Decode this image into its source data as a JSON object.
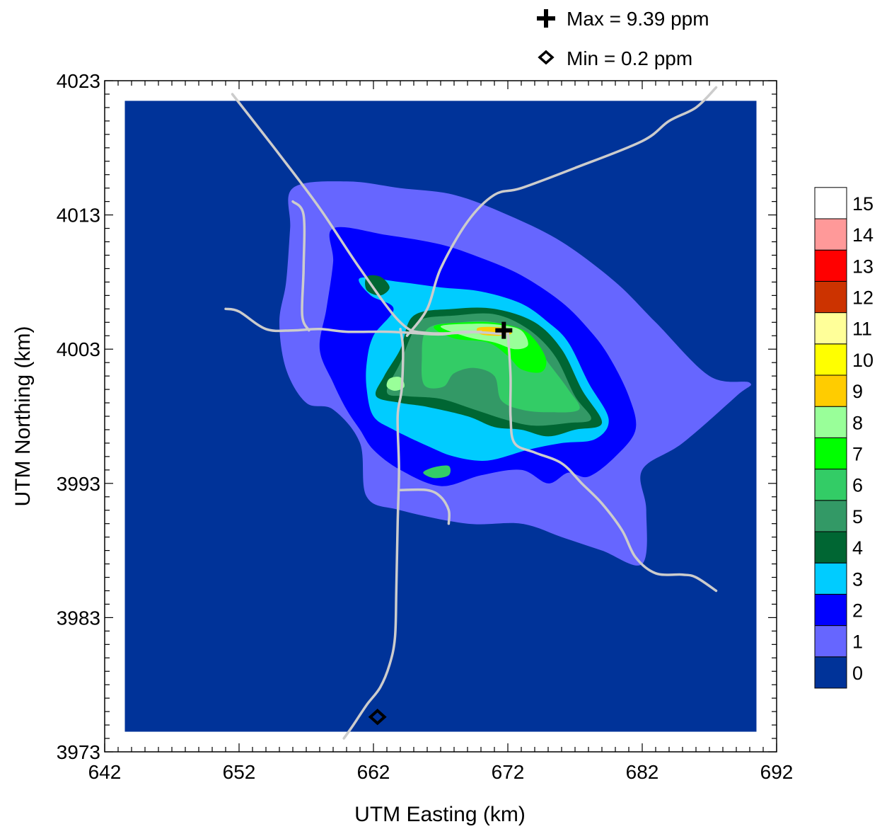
{
  "chart_data": {
    "type": "contour",
    "xlabel": "UTM Easting (km)",
    "ylabel": "UTM Northing (km)",
    "xlim": [
      642,
      692
    ],
    "ylim": [
      3973,
      4023
    ],
    "x_ticks": [
      642,
      652,
      662,
      672,
      682,
      692
    ],
    "y_ticks": [
      3973,
      3983,
      3993,
      4003,
      4013,
      4023
    ],
    "x_tick_labels": [
      "642",
      "652",
      "662",
      "672",
      "682",
      "692"
    ],
    "y_tick_labels": [
      "3973",
      "3983",
      "3993",
      "4003",
      "4013",
      "4023"
    ],
    "grid": false,
    "legend_position": "top-right",
    "max_marker": {
      "label": "Max = 9.39 ppm",
      "value": 9.39,
      "x": 671.7,
      "y": 4004.4,
      "icon": "plus-icon"
    },
    "min_marker": {
      "label": "Min = 0.2 ppm",
      "value": 0.2,
      "x": 662.3,
      "y": 3975.6,
      "icon": "diamond-icon"
    },
    "colorbar": {
      "position": "right",
      "levels": [
        "0",
        "1",
        "2",
        "3",
        "4",
        "5",
        "6",
        "7",
        "8",
        "9",
        "10",
        "11",
        "12",
        "13",
        "14",
        "15"
      ],
      "colors": [
        "#003399",
        "#6666ff",
        "#0000ff",
        "#00ccff",
        "#006633",
        "#339966",
        "#33cc66",
        "#00ff00",
        "#99ff99",
        "#ffcc00",
        "#ffff00",
        "#ffff99",
        "#cc3300",
        "#ff0000",
        "#ff9999",
        "#ffffff"
      ]
    },
    "domain": {
      "x": [
        643.5,
        690.5
      ],
      "y": [
        3974.5,
        4021.5
      ]
    },
    "road_color": "#cccccc",
    "contours": [
      {
        "level": 1,
        "color": "#6666ff",
        "points": [
          [
            656,
            4015
          ],
          [
            660,
            4015.5
          ],
          [
            664,
            4015
          ],
          [
            668,
            4014.5
          ],
          [
            672,
            4013
          ],
          [
            676,
            4011
          ],
          [
            680,
            4008
          ],
          [
            683,
            4005
          ],
          [
            687,
            4001
          ],
          [
            690,
            4000.5
          ],
          [
            689,
            3999.5
          ],
          [
            685,
            3996
          ],
          [
            682,
            3994
          ],
          [
            682.3,
            3991
          ],
          [
            682,
            3987
          ],
          [
            679,
            3988
          ],
          [
            676,
            3989
          ],
          [
            673,
            3990
          ],
          [
            669,
            3990
          ],
          [
            664,
            3991
          ],
          [
            661.5,
            3992
          ],
          [
            661,
            3996
          ],
          [
            659,
            3998.5
          ],
          [
            657,
            3999
          ],
          [
            655.5,
            4001.5
          ],
          [
            655,
            4005
          ],
          [
            655.5,
            4008
          ],
          [
            655.8,
            4012
          ]
        ]
      },
      {
        "level": 2,
        "color": "#0000ff",
        "points": [
          [
            659,
            4012
          ],
          [
            663,
            4011.5
          ],
          [
            667,
            4010.8
          ],
          [
            670,
            4009.8
          ],
          [
            673,
            4008.5
          ],
          [
            676,
            4006.5
          ],
          [
            678,
            4004.5
          ],
          [
            679.5,
            4002.5
          ],
          [
            681,
            3999.5
          ],
          [
            681.5,
            3997
          ],
          [
            680,
            3995
          ],
          [
            678,
            3993.5
          ],
          [
            676.5,
            3993.8
          ],
          [
            675,
            3993
          ],
          [
            673,
            3994
          ],
          [
            670,
            3993.6
          ],
          [
            667,
            3992.8
          ],
          [
            664,
            3994
          ],
          [
            662,
            3995.5
          ],
          [
            661,
            3997
          ],
          [
            660,
            3998.5
          ],
          [
            659,
            4000.5
          ],
          [
            658,
            4003
          ],
          [
            658.5,
            4006
          ],
          [
            659,
            4009.5
          ]
        ]
      },
      {
        "level": 3,
        "color": "#00ccff",
        "points": [
          [
            661,
            4008.3
          ],
          [
            664,
            4008
          ],
          [
            667,
            4007.6
          ],
          [
            670,
            4007.3
          ],
          [
            673,
            4006.4
          ],
          [
            675,
            4005
          ],
          [
            676.5,
            4003.5
          ],
          [
            678,
            4000.5
          ],
          [
            679.5,
            3997.8
          ],
          [
            678.5,
            3996.3
          ],
          [
            676,
            3996
          ],
          [
            673.5,
            3995.5
          ],
          [
            670.5,
            3994.7
          ],
          [
            668,
            3995
          ],
          [
            666,
            3995.8
          ],
          [
            663.5,
            3997
          ],
          [
            662,
            3998
          ],
          [
            661.5,
            4000
          ],
          [
            661.5,
            4002
          ],
          [
            662,
            4004
          ],
          [
            663.5,
            4006
          ],
          [
            661.8,
            4007
          ]
        ]
      },
      {
        "level": 4,
        "color": "#006633",
        "points": [
          [
            665,
            4005.5
          ],
          [
            668,
            4006
          ],
          [
            671,
            4006
          ],
          [
            674,
            4005
          ],
          [
            676,
            4003
          ],
          [
            677.5,
            4000
          ],
          [
            679,
            3997.5
          ],
          [
            677,
            3997
          ],
          [
            675,
            3996.5
          ],
          [
            673,
            3997
          ],
          [
            671,
            3997.2
          ],
          [
            669,
            3998
          ],
          [
            666,
            3998.7
          ],
          [
            664,
            3999
          ],
          [
            662.2,
            3999.5
          ],
          [
            662.8,
            4001
          ],
          [
            664,
            4003
          ]
        ]
      },
      {
        "level": 5,
        "color": "#339966",
        "points": [
          [
            665.5,
            4005.2
          ],
          [
            668,
            4005.5
          ],
          [
            671,
            4005.6
          ],
          [
            673.5,
            4004.5
          ],
          [
            675.5,
            4002.5
          ],
          [
            677,
            3999.5
          ],
          [
            678.2,
            3997.8
          ],
          [
            676.5,
            3997.5
          ],
          [
            674,
            3997.3
          ],
          [
            672,
            3997.7
          ],
          [
            669.5,
            3998.5
          ],
          [
            667,
            3999.3
          ],
          [
            664.5,
            3999.5
          ],
          [
            663,
            3999.8
          ],
          [
            664,
            4002
          ],
          [
            664.8,
            4004
          ]
        ]
      },
      {
        "level": 6,
        "color": "#33cc66",
        "points": [
          [
            666,
            4004.5
          ],
          [
            668.5,
            4005
          ],
          [
            671,
            4005
          ],
          [
            673.5,
            4004
          ],
          [
            675,
            4002
          ],
          [
            676.5,
            4000
          ],
          [
            677.3,
            3998.5
          ],
          [
            675,
            3998.3
          ],
          [
            673,
            3998.5
          ],
          [
            671.5,
            3999.2
          ],
          [
            671,
            4001
          ],
          [
            669.5,
            4001.6
          ],
          [
            668,
            4001.2
          ],
          [
            667.2,
            4000.2
          ],
          [
            665.8,
            4000.3
          ],
          [
            665.6,
            4002.2
          ]
        ]
      },
      {
        "level": 6,
        "color": "#33cc66",
        "points": [
          [
            666.5,
            3994.2
          ],
          [
            667.6,
            3994.3
          ],
          [
            667.6,
            3993.6
          ],
          [
            666.5,
            3993.4
          ],
          [
            665.7,
            3993.8
          ]
        ]
      },
      {
        "level": 5,
        "color": "#006633",
        "points": [
          [
            661.5,
            4008.4
          ],
          [
            662.5,
            4008.4
          ],
          [
            663.2,
            4007.6
          ],
          [
            662.5,
            4007.0
          ],
          [
            661.5,
            4007.4
          ]
        ]
      },
      {
        "level": 7,
        "color": "#00ff00",
        "points": [
          [
            666.5,
            4004.7
          ],
          [
            669,
            4005
          ],
          [
            671.5,
            4004.9
          ],
          [
            673.5,
            4004.2
          ],
          [
            674.8,
            4002.4
          ],
          [
            674.5,
            4001.3
          ],
          [
            673,
            4001.5
          ],
          [
            672,
            4002.5
          ],
          [
            670.5,
            4003.5
          ],
          [
            668,
            4003.8
          ]
        ]
      },
      {
        "level": 8,
        "color": "#99ff99",
        "points": [
          [
            667,
            4004.7
          ],
          [
            669.5,
            4004.9
          ],
          [
            671.5,
            4004.8
          ],
          [
            673,
            4004.4
          ],
          [
            673.5,
            4003.3
          ],
          [
            672.5,
            4003
          ],
          [
            671,
            4003.5
          ],
          [
            669,
            4003.9
          ]
        ]
      },
      {
        "level": 8,
        "color": "#99ff99",
        "points": [
          [
            663.2,
            4000.8
          ],
          [
            664,
            4000.9
          ],
          [
            664.3,
            4000.2
          ],
          [
            663.6,
            3999.9
          ],
          [
            663,
            4000.2
          ]
        ]
      },
      {
        "level": 9,
        "color": "#ffcc00",
        "points": [
          [
            669.8,
            4004.6
          ],
          [
            671.5,
            4004.6
          ],
          [
            672.3,
            4004.2
          ],
          [
            671.5,
            4004
          ],
          [
            670,
            4004.1
          ]
        ]
      }
    ],
    "roads": [
      [
        [
          651.5,
          4022
        ],
        [
          655,
          4017.5
        ],
        [
          658,
          4013.5
        ],
        [
          661,
          4009
        ],
        [
          664,
          4005
        ],
        [
          666,
          4004.2
        ],
        [
          670,
          4004.3
        ]
      ],
      [
        [
          687.5,
          4022.5
        ],
        [
          686,
          4021
        ],
        [
          684,
          4020
        ],
        [
          682,
          4018.5
        ],
        [
          677,
          4016.5
        ],
        [
          673,
          4015
        ],
        [
          671,
          4014.5
        ],
        [
          669,
          4012.5
        ],
        [
          667,
          4009
        ],
        [
          666,
          4006
        ],
        [
          664.5,
          4004
        ]
      ],
      [
        [
          651,
          4006
        ],
        [
          652,
          4005.8
        ],
        [
          654,
          4004.5
        ],
        [
          656,
          4004.4
        ],
        [
          658,
          4004.5
        ],
        [
          660,
          4004.3
        ],
        [
          663,
          4004.3
        ],
        [
          665,
          4004.2
        ],
        [
          667,
          4004.1
        ],
        [
          669,
          4004.3
        ],
        [
          672,
          4004.1
        ]
      ],
      [
        [
          656,
          4014
        ],
        [
          656.8,
          4013
        ],
        [
          656.8,
          4009
        ],
        [
          656.7,
          4005.5
        ],
        [
          657.2,
          4004.4
        ]
      ],
      [
        [
          664,
          4004.5
        ],
        [
          664.2,
          4003
        ],
        [
          664.1,
          4000
        ],
        [
          663.8,
          3998
        ],
        [
          663.9,
          3994
        ],
        [
          663.8,
          3990
        ],
        [
          663.7,
          3985
        ],
        [
          663.6,
          3981.5
        ],
        [
          663.2,
          3979.5
        ],
        [
          662.5,
          3977.8
        ],
        [
          661.5,
          3976.5
        ],
        [
          660.5,
          3975
        ],
        [
          659.8,
          3974
        ]
      ],
      [
        [
          664,
          3992.5
        ],
        [
          666,
          3992.5
        ],
        [
          667,
          3992
        ],
        [
          667.6,
          3991
        ],
        [
          667.6,
          3990
        ]
      ],
      [
        [
          672,
          4004.3
        ],
        [
          672.2,
          4001
        ],
        [
          672.2,
          3998
        ],
        [
          672.5,
          3996
        ],
        [
          674,
          3995.3
        ],
        [
          676,
          3994.5
        ],
        [
          677.5,
          3993
        ],
        [
          679,
          3991.5
        ],
        [
          680.5,
          3989.5
        ],
        [
          681.5,
          3987.5
        ],
        [
          683,
          3986.3
        ],
        [
          685,
          3986.2
        ],
        [
          686,
          3986
        ],
        [
          687.5,
          3985
        ]
      ]
    ]
  }
}
